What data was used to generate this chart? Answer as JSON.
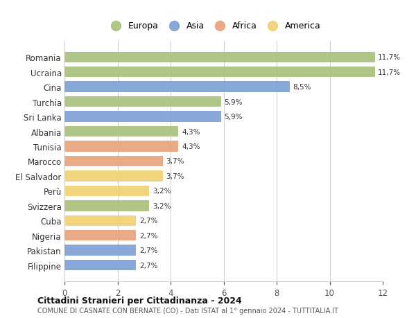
{
  "categories": [
    "Romania",
    "Ucraina",
    "Cina",
    "Turchia",
    "Sri Lanka",
    "Albania",
    "Tunisia",
    "Marocco",
    "El Salvador",
    "Perù",
    "Svizzera",
    "Cuba",
    "Nigeria",
    "Pakistan",
    "Filippine"
  ],
  "values": [
    11.7,
    11.7,
    8.5,
    5.9,
    5.9,
    4.3,
    4.3,
    3.7,
    3.7,
    3.2,
    3.2,
    2.7,
    2.7,
    2.7,
    2.7
  ],
  "labels": [
    "11,7%",
    "11,7%",
    "8,5%",
    "5,9%",
    "5,9%",
    "4,3%",
    "4,3%",
    "3,7%",
    "3,7%",
    "3,2%",
    "3,2%",
    "2,7%",
    "2,7%",
    "2,7%",
    "2,7%"
  ],
  "continents": [
    "Europa",
    "Europa",
    "Asia",
    "Europa",
    "Asia",
    "Europa",
    "Africa",
    "Africa",
    "America",
    "America",
    "Europa",
    "America",
    "Africa",
    "Asia",
    "Asia"
  ],
  "colors": {
    "Europa": "#a8c07a",
    "Asia": "#7b9fd4",
    "Africa": "#e8a07a",
    "America": "#f0d070"
  },
  "legend_order": [
    "Europa",
    "Asia",
    "Africa",
    "America"
  ],
  "title": "Cittadini Stranieri per Cittadinanza - 2024",
  "subtitle": "COMUNE DI CASNATE CON BERNATE (CO) - Dati ISTAT al 1° gennaio 2024 - TUTTITALIA.IT",
  "xlim": [
    0,
    12
  ],
  "xticks": [
    0,
    2,
    4,
    6,
    8,
    10,
    12
  ],
  "background_color": "#ffffff",
  "grid_color": "#cccccc"
}
